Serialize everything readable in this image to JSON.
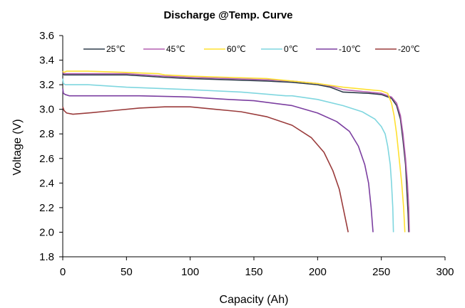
{
  "chart_data": {
    "type": "line",
    "title": "Discharge @Temp. Curve",
    "xlabel": "Capacity (Ah)",
    "ylabel": "Voltage (V)",
    "xlim": [
      0,
      300
    ],
    "ylim": [
      1.8,
      3.6
    ],
    "xticks": [
      "0",
      "50",
      "100",
      "150",
      "200",
      "250",
      "300"
    ],
    "yticks": [
      "1.8",
      "2.0",
      "2.2",
      "2.4",
      "2.6",
      "2.8",
      "3.0",
      "3.2",
      "3.4",
      "3.6"
    ],
    "grid": false,
    "legend_position": "top",
    "series": [
      {
        "name": "25℃",
        "color": "#2f3d4c",
        "points": [
          [
            0,
            3.3
          ],
          [
            1,
            3.28
          ],
          [
            3,
            3.28
          ],
          [
            20,
            3.28
          ],
          [
            50,
            3.28
          ],
          [
            80,
            3.26
          ],
          [
            100,
            3.25
          ],
          [
            130,
            3.24
          ],
          [
            160,
            3.23
          ],
          [
            180,
            3.22
          ],
          [
            200,
            3.2
          ],
          [
            210,
            3.18
          ],
          [
            220,
            3.14
          ],
          [
            240,
            3.13
          ],
          [
            250,
            3.12
          ],
          [
            258,
            3.09
          ],
          [
            262,
            3.03
          ],
          [
            265,
            2.92
          ],
          [
            267,
            2.75
          ],
          [
            269,
            2.55
          ],
          [
            270,
            2.35
          ],
          [
            271,
            2.15
          ],
          [
            271.5,
            2.0
          ]
        ]
      },
      {
        "name": "45℃",
        "color": "#b35fb0",
        "points": [
          [
            0,
            3.3
          ],
          [
            1,
            3.29
          ],
          [
            3,
            3.29
          ],
          [
            20,
            3.29
          ],
          [
            50,
            3.29
          ],
          [
            80,
            3.27
          ],
          [
            100,
            3.26
          ],
          [
            130,
            3.25
          ],
          [
            160,
            3.24
          ],
          [
            180,
            3.23
          ],
          [
            200,
            3.21
          ],
          [
            210,
            3.19
          ],
          [
            220,
            3.16
          ],
          [
            240,
            3.14
          ],
          [
            250,
            3.13
          ],
          [
            258,
            3.1
          ],
          [
            262,
            3.05
          ],
          [
            265,
            2.95
          ],
          [
            267,
            2.8
          ],
          [
            269,
            2.6
          ],
          [
            270.5,
            2.4
          ],
          [
            271.5,
            2.2
          ],
          [
            272,
            2.0
          ]
        ]
      },
      {
        "name": "60℃",
        "color": "#ffe030",
        "points": [
          [
            0,
            3.31
          ],
          [
            1,
            3.3
          ],
          [
            3,
            3.31
          ],
          [
            20,
            3.31
          ],
          [
            50,
            3.3
          ],
          [
            75,
            3.29
          ],
          [
            80,
            3.28
          ],
          [
            100,
            3.27
          ],
          [
            130,
            3.26
          ],
          [
            160,
            3.25
          ],
          [
            180,
            3.23
          ],
          [
            200,
            3.21
          ],
          [
            220,
            3.18
          ],
          [
            240,
            3.16
          ],
          [
            250,
            3.15
          ],
          [
            255,
            3.13
          ],
          [
            258,
            3.05
          ],
          [
            260,
            2.95
          ],
          [
            262,
            2.8
          ],
          [
            264,
            2.6
          ],
          [
            266,
            2.4
          ],
          [
            267.5,
            2.2
          ],
          [
            268.5,
            2.0
          ]
        ]
      },
      {
        "name": "0℃",
        "color": "#7fd6df",
        "points": [
          [
            0,
            3.25
          ],
          [
            0.5,
            3.21
          ],
          [
            2,
            3.2
          ],
          [
            5,
            3.2
          ],
          [
            20,
            3.2
          ],
          [
            50,
            3.18
          ],
          [
            100,
            3.16
          ],
          [
            140,
            3.14
          ],
          [
            175,
            3.11
          ],
          [
            180,
            3.11
          ],
          [
            200,
            3.08
          ],
          [
            220,
            3.03
          ],
          [
            235,
            2.98
          ],
          [
            245,
            2.92
          ],
          [
            250,
            2.86
          ],
          [
            253,
            2.8
          ],
          [
            255,
            2.7
          ],
          [
            257,
            2.55
          ],
          [
            258,
            2.4
          ],
          [
            259,
            2.2
          ],
          [
            259.5,
            2.0
          ]
        ]
      },
      {
        "name": "-10℃",
        "color": "#7b3ea0",
        "points": [
          [
            0,
            3.17
          ],
          [
            0.5,
            3.13
          ],
          [
            2,
            3.12
          ],
          [
            5,
            3.11
          ],
          [
            30,
            3.11
          ],
          [
            60,
            3.11
          ],
          [
            100,
            3.1
          ],
          [
            130,
            3.08
          ],
          [
            150,
            3.07
          ],
          [
            180,
            3.03
          ],
          [
            200,
            2.97
          ],
          [
            215,
            2.9
          ],
          [
            225,
            2.82
          ],
          [
            232,
            2.7
          ],
          [
            237,
            2.55
          ],
          [
            240,
            2.4
          ],
          [
            242,
            2.2
          ],
          [
            243.5,
            2.0
          ]
        ]
      },
      {
        "name": "-20℃",
        "color": "#9a3b3b",
        "points": [
          [
            0,
            3.02
          ],
          [
            1,
            2.99
          ],
          [
            3,
            2.97
          ],
          [
            8,
            2.96
          ],
          [
            20,
            2.97
          ],
          [
            40,
            2.99
          ],
          [
            60,
            3.01
          ],
          [
            80,
            3.02
          ],
          [
            100,
            3.02
          ],
          [
            120,
            3.0
          ],
          [
            130,
            2.99
          ],
          [
            140,
            2.98
          ],
          [
            160,
            2.94
          ],
          [
            180,
            2.87
          ],
          [
            195,
            2.77
          ],
          [
            205,
            2.65
          ],
          [
            212,
            2.5
          ],
          [
            217,
            2.35
          ],
          [
            220,
            2.2
          ],
          [
            223,
            2.05
          ],
          [
            224,
            2.0
          ]
        ]
      }
    ]
  }
}
